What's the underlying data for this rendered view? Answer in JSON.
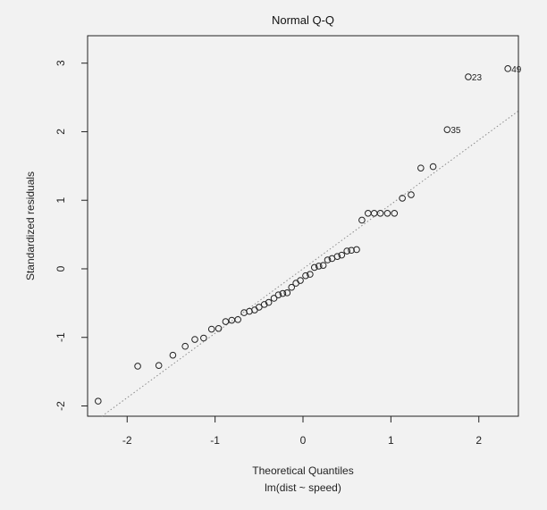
{
  "chart_data": {
    "type": "scatter",
    "title": "Normal Q-Q",
    "xlabel": "Theoretical Quantiles",
    "subtitle": "lm(dist ~ speed)",
    "ylabel": "Standardized residuals",
    "xlim": [
      -2.45,
      2.45
    ],
    "ylim": [
      -2.15,
      3.4
    ],
    "xticks": [
      -2,
      -1,
      0,
      1,
      2
    ],
    "yticks": [
      -2,
      -1,
      0,
      1,
      2,
      3
    ],
    "grid": false,
    "points": [
      {
        "x": -2.33,
        "y": -1.93
      },
      {
        "x": -1.88,
        "y": -1.42
      },
      {
        "x": -1.64,
        "y": -1.41
      },
      {
        "x": -1.48,
        "y": -1.26
      },
      {
        "x": -1.34,
        "y": -1.13
      },
      {
        "x": -1.23,
        "y": -1.03
      },
      {
        "x": -1.13,
        "y": -1.01
      },
      {
        "x": -1.04,
        "y": -0.88
      },
      {
        "x": -0.96,
        "y": -0.87
      },
      {
        "x": -0.88,
        "y": -0.77
      },
      {
        "x": -0.81,
        "y": -0.75
      },
      {
        "x": -0.74,
        "y": -0.74
      },
      {
        "x": -0.67,
        "y": -0.64
      },
      {
        "x": -0.61,
        "y": -0.62
      },
      {
        "x": -0.55,
        "y": -0.6
      },
      {
        "x": -0.5,
        "y": -0.56
      },
      {
        "x": -0.44,
        "y": -0.52
      },
      {
        "x": -0.39,
        "y": -0.49
      },
      {
        "x": -0.33,
        "y": -0.43
      },
      {
        "x": -0.28,
        "y": -0.38
      },
      {
        "x": -0.23,
        "y": -0.36
      },
      {
        "x": -0.18,
        "y": -0.35
      },
      {
        "x": -0.13,
        "y": -0.27
      },
      {
        "x": -0.08,
        "y": -0.21
      },
      {
        "x": -0.03,
        "y": -0.17
      },
      {
        "x": 0.03,
        "y": -0.1
      },
      {
        "x": 0.08,
        "y": -0.08
      },
      {
        "x": 0.13,
        "y": 0.02
      },
      {
        "x": 0.18,
        "y": 0.04
      },
      {
        "x": 0.23,
        "y": 0.05
      },
      {
        "x": 0.28,
        "y": 0.13
      },
      {
        "x": 0.33,
        "y": 0.15
      },
      {
        "x": 0.39,
        "y": 0.18
      },
      {
        "x": 0.44,
        "y": 0.2
      },
      {
        "x": 0.5,
        "y": 0.26
      },
      {
        "x": 0.55,
        "y": 0.27
      },
      {
        "x": 0.61,
        "y": 0.28
      },
      {
        "x": 0.67,
        "y": 0.71
      },
      {
        "x": 0.74,
        "y": 0.81
      },
      {
        "x": 0.81,
        "y": 0.81
      },
      {
        "x": 0.88,
        "y": 0.81
      },
      {
        "x": 0.96,
        "y": 0.81
      },
      {
        "x": 1.04,
        "y": 0.81
      },
      {
        "x": 1.13,
        "y": 1.03
      },
      {
        "x": 1.23,
        "y": 1.08
      },
      {
        "x": 1.34,
        "y": 1.47
      },
      {
        "x": 1.48,
        "y": 1.49
      },
      {
        "x": 1.64,
        "y": 2.03,
        "label": "35"
      },
      {
        "x": 1.88,
        "y": 2.8,
        "label": "23"
      },
      {
        "x": 2.33,
        "y": 2.92,
        "label": "49"
      }
    ],
    "reference_line": {
      "intercept": 0.0,
      "slope": 0.94
    }
  }
}
